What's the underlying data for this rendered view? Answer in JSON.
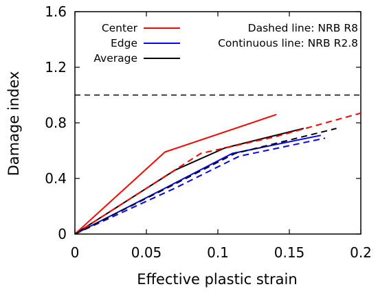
{
  "chart_data": {
    "type": "line",
    "xlabel": "Effective plastic strain",
    "ylabel": "Damage index",
    "xlim": [
      0,
      0.2
    ],
    "ylim": [
      0,
      1.6
    ],
    "x_ticks": [
      "0",
      "0.05",
      "0.1",
      "0.15",
      "0.2"
    ],
    "x_tick_values": [
      0,
      0.05,
      0.1,
      0.15,
      0.2
    ],
    "y_ticks": [
      "0",
      "0.4",
      "0.8",
      "1.2",
      "1.6"
    ],
    "y_tick_values": [
      0,
      0.4,
      0.8,
      1.2,
      1.6
    ],
    "grid": false,
    "legend_placement": "top-left",
    "annotations": [
      "Dashed line: NRB R8",
      "Continuous line: NRB R2.8"
    ],
    "reference_line": {
      "y": 1.0,
      "style": "dashed",
      "color": "#000000"
    },
    "series": [
      {
        "name": "Center",
        "color": "#ff0000",
        "style": "solid",
        "x": [
          0,
          0.063,
          0.141
        ],
        "y": [
          0,
          0.59,
          0.86
        ]
      },
      {
        "name": "Edge",
        "color": "#0000ff",
        "style": "solid",
        "x": [
          0,
          0.065,
          0.11,
          0.172
        ],
        "y": [
          0,
          0.34,
          0.58,
          0.71
        ]
      },
      {
        "name": "Average",
        "color": "#000000",
        "style": "solid",
        "x": [
          0,
          0.07,
          0.105,
          0.16
        ],
        "y": [
          0,
          0.46,
          0.62,
          0.76
        ]
      },
      {
        "color": "#ff0000",
        "style": "dashed",
        "x": [
          0,
          0.088,
          0.14,
          0.2
        ],
        "y": [
          0,
          0.58,
          0.7,
          0.87
        ]
      },
      {
        "color": "#0000ff",
        "style": "dashed",
        "x": [
          0,
          0.07,
          0.115,
          0.175
        ],
        "y": [
          0,
          0.33,
          0.56,
          0.69
        ]
      },
      {
        "color": "#000000",
        "style": "dashed",
        "x": [
          0,
          0.07,
          0.112,
          0.183
        ],
        "y": [
          0,
          0.36,
          0.58,
          0.76
        ]
      }
    ]
  }
}
